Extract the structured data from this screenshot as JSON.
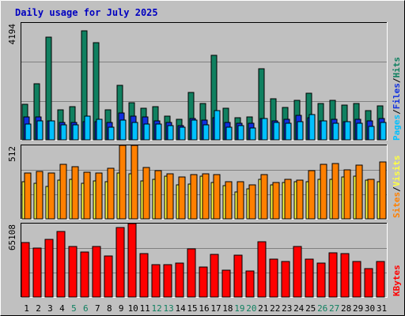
{
  "title": "Daily usage for July 2025",
  "colors": {
    "background": "#c0c0c0",
    "plot_bg": "#c0c0c0",
    "title": "#0000c0",
    "hits": "#108060",
    "files": "#1030e0",
    "pages": "#00c0ff",
    "visits": "#ffff40",
    "sites": "#ff8000",
    "kbytes": "#ff0000",
    "weekend_label": "#108060"
  },
  "labels": {
    "hits": "Hits",
    "files": "Files",
    "pages": "Pages",
    "visits": "Visits",
    "sites": "Sites",
    "kbytes": "KBytes",
    "sep": "/"
  },
  "chart_data": [
    {
      "type": "bar",
      "panel": "hits-files-pages",
      "y_max_label": "4194",
      "ylim": [
        0,
        4194
      ],
      "categories": [
        "1",
        "2",
        "3",
        "4",
        "5",
        "6",
        "7",
        "8",
        "9",
        "10",
        "11",
        "12",
        "13",
        "14",
        "15",
        "16",
        "17",
        "18",
        "19",
        "20",
        "21",
        "22",
        "23",
        "24",
        "25",
        "26",
        "27",
        "28",
        "29",
        "30",
        "31"
      ],
      "weekend_days": [
        "5",
        "6",
        "12",
        "13",
        "19",
        "20",
        "26",
        "27"
      ],
      "series": [
        {
          "name": "Hits",
          "values": [
            1323,
            2109,
            3832,
            1124,
            1237,
            4064,
            3622,
            1124,
            2036,
            1380,
            1177,
            1246,
            886,
            776,
            1786,
            1359,
            3159,
            1195,
            819,
            855,
            2660,
            1524,
            1204,
            1472,
            1748,
            1366,
            1487,
            1302,
            1352,
            1085,
            1272
          ]
        },
        {
          "name": "Files",
          "values": [
            857,
            849,
            696,
            637,
            651,
            668,
            678,
            637,
            1018,
            898,
            848,
            700,
            647,
            540,
            791,
            750,
            822,
            648,
            629,
            633,
            807,
            697,
            763,
            928,
            840,
            702,
            760,
            690,
            779,
            708,
            797
          ]
        },
        {
          "name": "Pages",
          "values": [
            587,
            714,
            705,
            574,
            575,
            892,
            765,
            470,
            741,
            661,
            592,
            593,
            532,
            460,
            735,
            553,
            1100,
            475,
            546,
            449,
            783,
            660,
            633,
            681,
            954,
            722,
            618,
            692,
            611,
            488,
            647
          ]
        }
      ]
    },
    {
      "type": "bar",
      "panel": "visits-sites",
      "y_max_label": "512",
      "ylim": [
        0,
        512
      ],
      "categories": [
        "1",
        "2",
        "3",
        "4",
        "5",
        "6",
        "7",
        "8",
        "9",
        "10",
        "11",
        "12",
        "13",
        "14",
        "15",
        "16",
        "17",
        "18",
        "19",
        "20",
        "21",
        "22",
        "23",
        "24",
        "25",
        "26",
        "27",
        "28",
        "29",
        "30",
        "31"
      ],
      "series": [
        {
          "name": "Visits",
          "values": [
            260,
            245,
            223,
            272,
            274,
            247,
            262,
            259,
            318,
            315,
            266,
            276,
            295,
            235,
            242,
            295,
            251,
            230,
            185,
            209,
            277,
            238,
            254,
            257,
            261,
            278,
            278,
            291,
            298,
            271,
            256
          ]
        },
        {
          "name": "Sites",
          "values": [
            317,
            333,
            318,
            379,
            364,
            326,
            320,
            350,
            512,
            512,
            357,
            336,
            312,
            294,
            307,
            315,
            311,
            261,
            260,
            234,
            310,
            252,
            278,
            271,
            337,
            378,
            384,
            339,
            376,
            277,
            394
          ]
        }
      ]
    },
    {
      "type": "bar",
      "panel": "kbytes",
      "y_max_label": "65108",
      "ylim": [
        0,
        65108
      ],
      "categories": [
        "1",
        "2",
        "3",
        "4",
        "5",
        "6",
        "7",
        "8",
        "9",
        "10",
        "11",
        "12",
        "13",
        "14",
        "15",
        "16",
        "17",
        "18",
        "19",
        "20",
        "21",
        "22",
        "23",
        "24",
        "25",
        "26",
        "27",
        "28",
        "29",
        "30",
        "31"
      ],
      "series": [
        {
          "name": "KBytes",
          "values": [
            48080,
            43580,
            50920,
            58200,
            44690,
            39940,
            44690,
            36230,
            61350,
            65108,
            38630,
            28480,
            28850,
            30440,
            42410,
            26340,
            37990,
            23850,
            37220,
            23450,
            49240,
            33910,
            31480,
            44950,
            33380,
            30440,
            38880,
            38630,
            31480,
            25170,
            31670
          ]
        }
      ]
    }
  ]
}
